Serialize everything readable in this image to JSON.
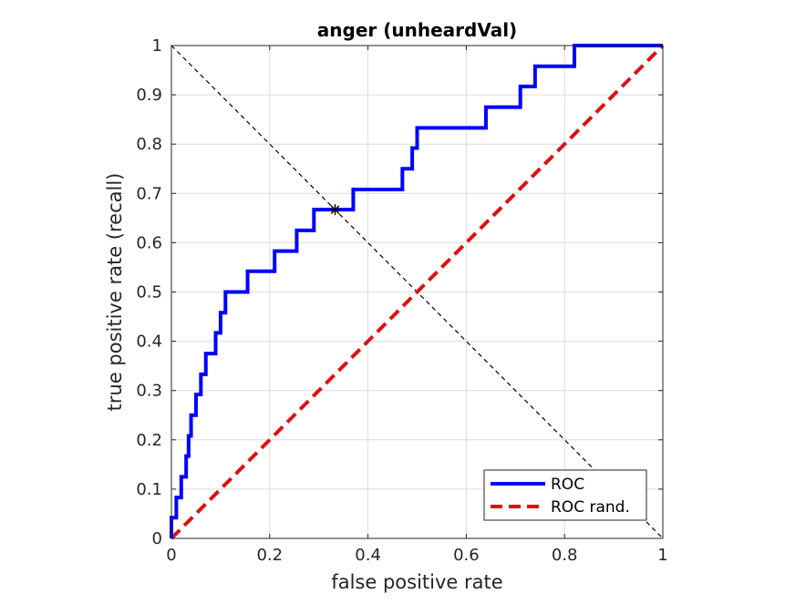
{
  "chart_data": {
    "type": "line",
    "title": "anger (unheardVal)",
    "xlabel": "false positive rate",
    "ylabel": "true positive rate (recall)",
    "xlim": [
      0,
      1
    ],
    "ylim": [
      0,
      1
    ],
    "xticks": [
      0,
      0.2,
      0.4,
      0.6,
      0.8,
      1
    ],
    "xtick_labels": [
      "0",
      "0.2",
      "0.4",
      "0.6",
      "0.8",
      "1"
    ],
    "yticks": [
      0,
      0.1,
      0.2,
      0.3,
      0.4,
      0.5,
      0.6,
      0.7,
      0.8,
      0.9,
      1
    ],
    "ytick_labels": [
      "0",
      "0.1",
      "0.2",
      "0.3",
      "0.4",
      "0.5",
      "0.6",
      "0.7",
      "0.8",
      "0.9",
      "1"
    ],
    "grid": true,
    "legend_position": "bottom-right",
    "colors": {
      "roc": "#0000ff",
      "random": "#e01010",
      "diagonal": "#000000",
      "grid": "#dcdcdc"
    },
    "series": [
      {
        "name": "ROC",
        "style": "solid",
        "x": [
          0,
          0,
          0.01,
          0.01,
          0.02,
          0.02,
          0.03,
          0.03,
          0.035,
          0.035,
          0.04,
          0.04,
          0.05,
          0.05,
          0.06,
          0.06,
          0.065,
          0.065,
          0.07,
          0.07,
          0.08,
          0.08,
          0.09,
          0.09,
          0.1,
          0.1,
          0.11,
          0.11,
          0.115,
          0.115,
          0.155,
          0.155,
          0.21,
          0.21,
          0.255,
          0.255,
          0.29,
          0.29,
          0.33,
          0.33,
          0.37,
          0.37,
          0.47,
          0.47,
          0.49,
          0.49,
          0.5,
          0.5,
          0.64,
          0.64,
          0.71,
          0.71,
          0.74,
          0.74,
          0.82,
          0.82,
          1
        ],
        "y": [
          0,
          0.042,
          0.042,
          0.083,
          0.083,
          0.125,
          0.125,
          0.167,
          0.167,
          0.208,
          0.208,
          0.25,
          0.25,
          0.292,
          0.292,
          0.333,
          0.333,
          0.333,
          0.333,
          0.375,
          0.375,
          0.375,
          0.375,
          0.417,
          0.417,
          0.458,
          0.458,
          0.5,
          0.5,
          0.5,
          0.5,
          0.542,
          0.542,
          0.583,
          0.583,
          0.625,
          0.625,
          0.667,
          0.667,
          0.667,
          0.667,
          0.708,
          0.708,
          0.75,
          0.75,
          0.792,
          0.792,
          0.833,
          0.833,
          0.875,
          0.875,
          0.917,
          0.917,
          0.958,
          0.958,
          1,
          1
        ]
      },
      {
        "name": "ROC rand.",
        "style": "dashed",
        "x": [
          0,
          1
        ],
        "y": [
          0,
          1
        ]
      }
    ],
    "diagonal": {
      "x": [
        0,
        1
      ],
      "y": [
        1,
        0
      ]
    },
    "marker": {
      "x": 0.333,
      "y": 0.667,
      "symbol": "*"
    }
  }
}
